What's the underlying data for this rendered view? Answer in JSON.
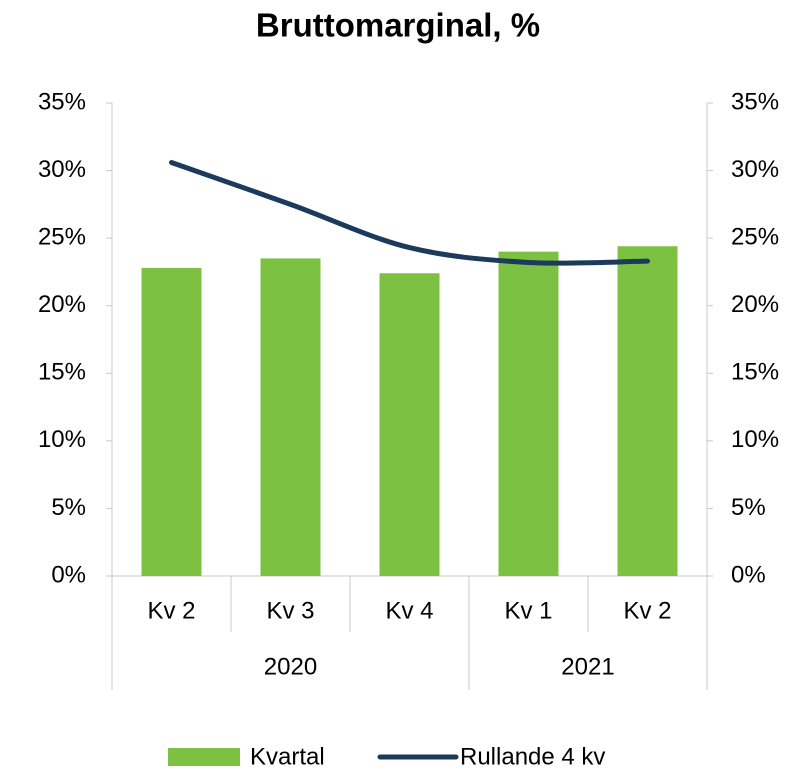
{
  "chart_data": {
    "type": "bar_line",
    "title": "Bruttomarginal, %",
    "categories": [
      "Kv 2",
      "Kv 3",
      "Kv 4",
      "Kv 1",
      "Kv 2"
    ],
    "category_groups": [
      "2020",
      "2020",
      "2020",
      "2021",
      "2021"
    ],
    "series": [
      {
        "name": "Kvartal",
        "type": "bar",
        "color": "#7dc142",
        "values": [
          22.8,
          23.5,
          22.4,
          24.0,
          24.4
        ]
      },
      {
        "name": "Rullande 4 kv",
        "type": "line",
        "axis": "y2",
        "color": "#1b3a5c",
        "values": [
          30.6,
          27.5,
          24.3,
          23.2,
          23.3
        ]
      }
    ],
    "ylim": [
      0,
      35
    ],
    "yticks": [
      {
        "value": 0,
        "label": "0%"
      },
      {
        "value": 5,
        "label": "5%"
      },
      {
        "value": 10,
        "label": "10%"
      },
      {
        "value": 15,
        "label": "15%"
      },
      {
        "value": 20,
        "label": "20%"
      },
      {
        "value": 25,
        "label": "25%"
      },
      {
        "value": 30,
        "label": "30%"
      },
      {
        "value": 35,
        "label": "35%"
      }
    ],
    "y2lim": [
      0,
      35
    ],
    "y2ticks": [
      {
        "value": 0,
        "label": "0%"
      },
      {
        "value": 5,
        "label": "5%"
      },
      {
        "value": 10,
        "label": "10%"
      },
      {
        "value": 15,
        "label": "15%"
      },
      {
        "value": 20,
        "label": "20%"
      },
      {
        "value": 25,
        "label": "25%"
      },
      {
        "value": 30,
        "label": "30%"
      },
      {
        "value": 35,
        "label": "35%"
      }
    ],
    "grid": false,
    "legend": "bottom"
  }
}
